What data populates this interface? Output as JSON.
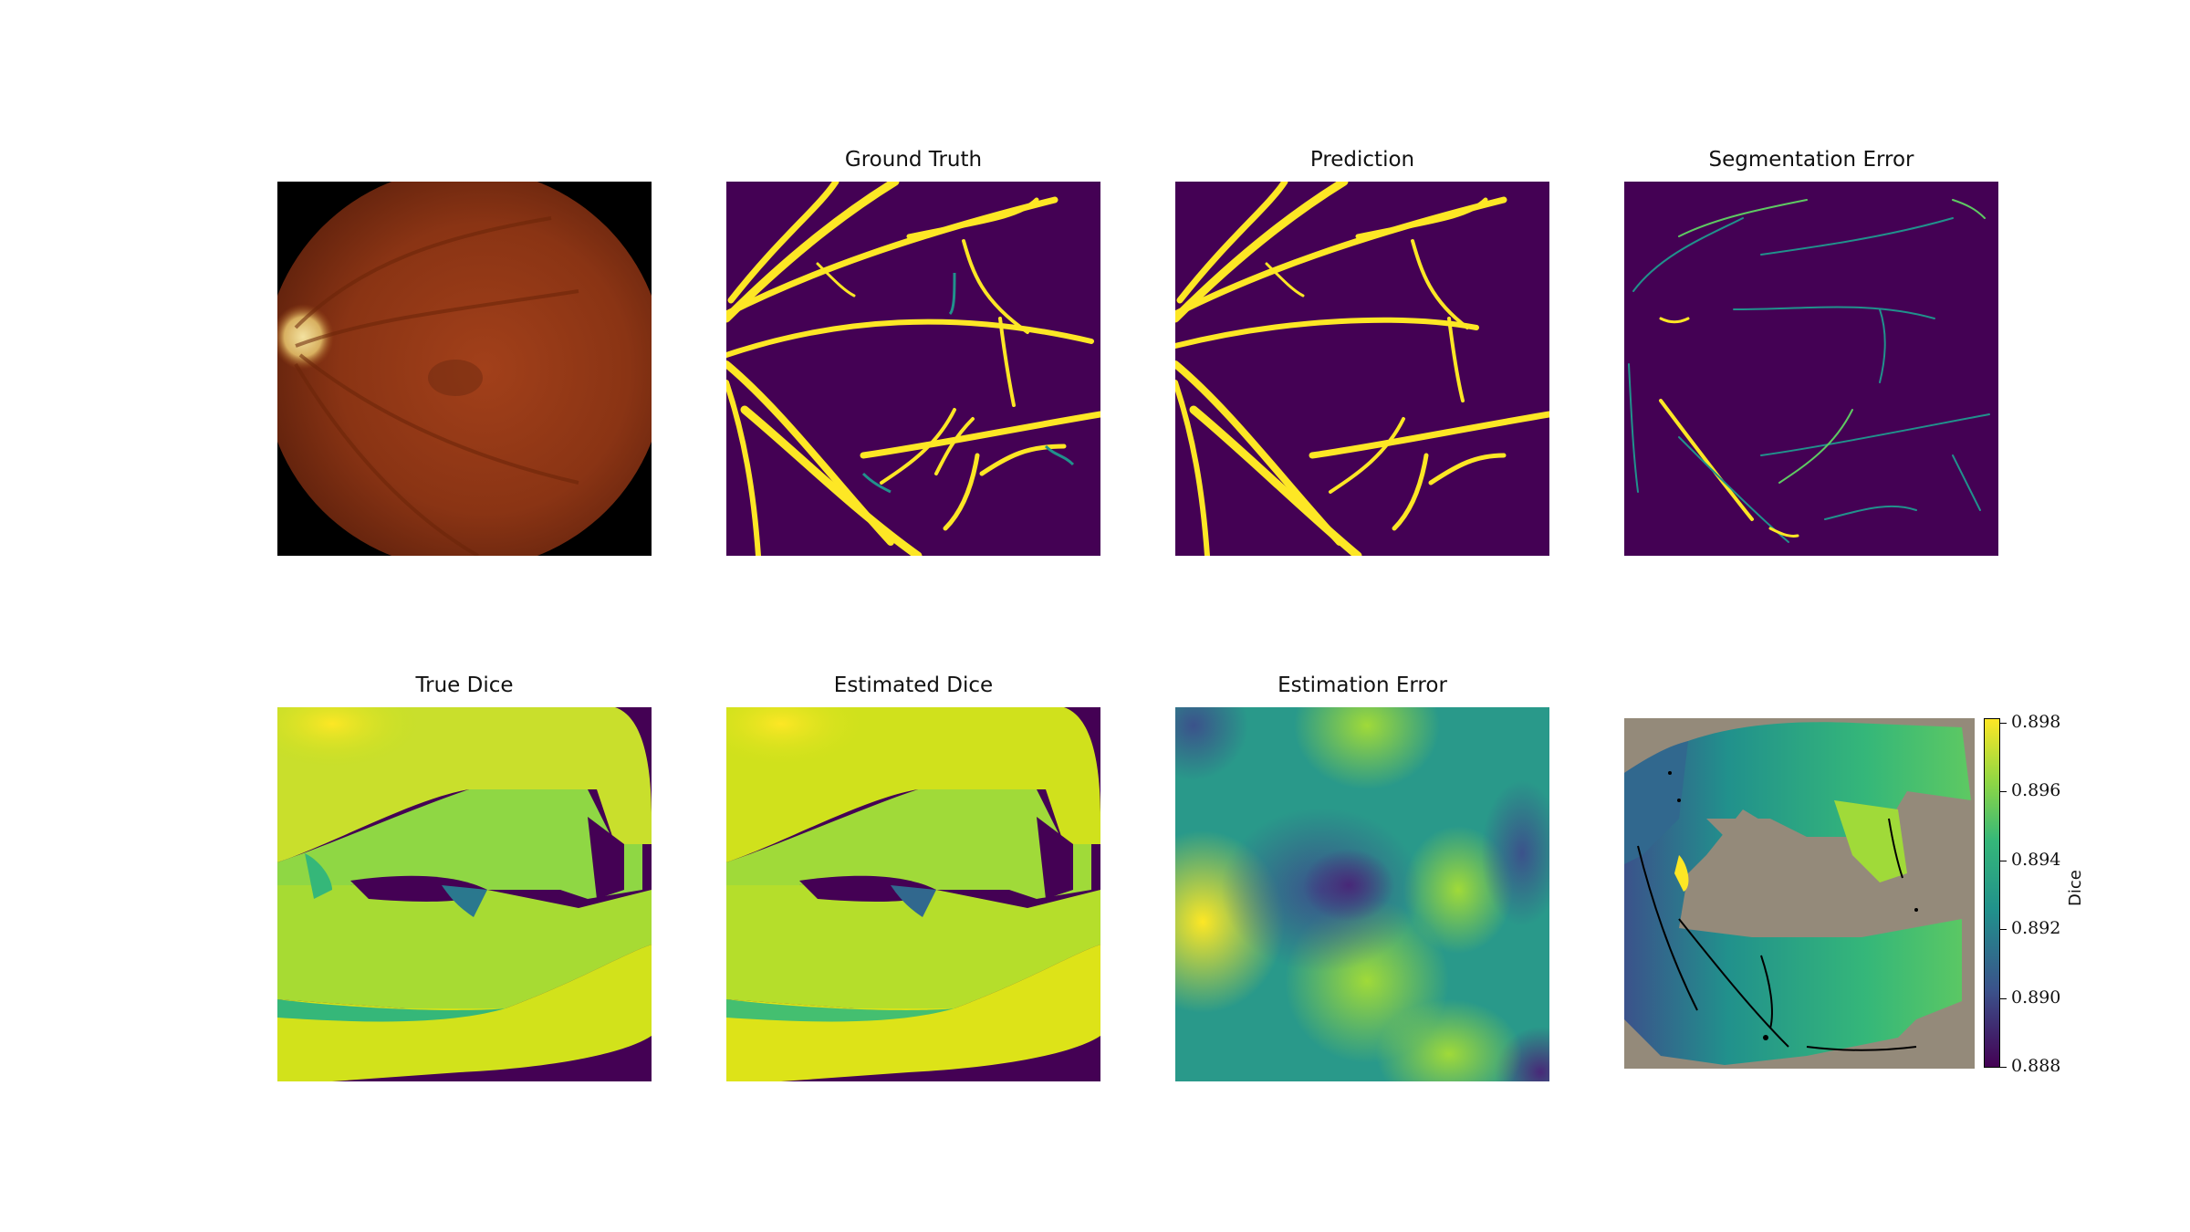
{
  "panels": {
    "fundus": {
      "title": ""
    },
    "ground_truth": {
      "title": "Ground Truth"
    },
    "prediction": {
      "title": "Prediction"
    },
    "segmentation_error": {
      "title": "Segmentation Error"
    },
    "true_dice": {
      "title": "True Dice"
    },
    "estimated_dice": {
      "title": "Estimated Dice"
    },
    "estimation_error": {
      "title": "Estimation Error"
    },
    "dice_overlay": {
      "title": ""
    }
  },
  "colorbar": {
    "label": "Dice",
    "min": 0.888,
    "max": 0.898,
    "ticks": [
      "0.888",
      "0.890",
      "0.892",
      "0.894",
      "0.896",
      "0.898"
    ]
  },
  "colors": {
    "viridis_dark": "#440154",
    "viridis_blue": "#3b528b",
    "viridis_teal": "#21918c",
    "viridis_green": "#5ec962",
    "viridis_yellow": "#fde725",
    "mask_gray": "#948a7a"
  }
}
